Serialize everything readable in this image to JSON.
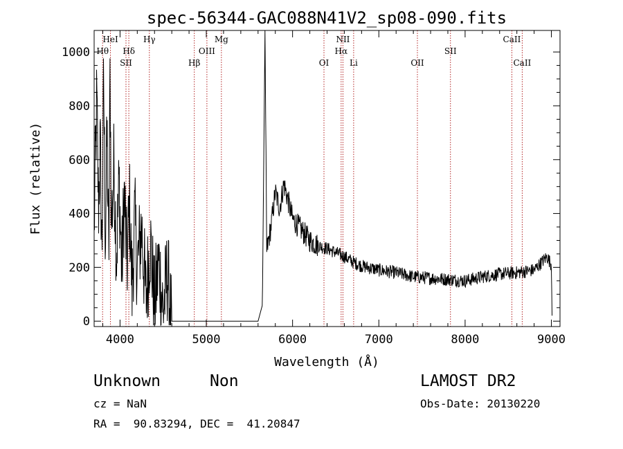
{
  "chart_data": {
    "type": "line",
    "title": "spec-56344-GAC088N41V2_sp08-090.fits",
    "xlabel": "Wavelength (Å)",
    "ylabel": "Flux (relative)",
    "xlim": [
      3700,
      9100
    ],
    "ylim": [
      -20,
      1080
    ],
    "xticks": [
      4000,
      5000,
      6000,
      7000,
      8000,
      9000
    ],
    "yticks": [
      0,
      200,
      400,
      600,
      800,
      1000
    ],
    "grid": false,
    "line_color": "#000000",
    "marker_color": "#b22222",
    "lines": [
      {
        "label": "Hθ",
        "wave": 3798,
        "row": 2
      },
      {
        "label": "HeI",
        "wave": 3889,
        "row": 1
      },
      {
        "label": "SII",
        "wave": 4069,
        "row": 3
      },
      {
        "label": "Hδ",
        "wave": 4102,
        "row": 2
      },
      {
        "label": "Hγ",
        "wave": 4340,
        "row": 1
      },
      {
        "label": "Hβ",
        "wave": 4861,
        "row": 3
      },
      {
        "label": "OIII",
        "wave": 5007,
        "row": 2
      },
      {
        "label": "Mg",
        "wave": 5175,
        "row": 1
      },
      {
        "label": "OI",
        "wave": 6364,
        "row": 3
      },
      {
        "label": "NII",
        "wave": 6584,
        "row": 1
      },
      {
        "label": "Hα",
        "wave": 6563,
        "row": 2
      },
      {
        "label": "Li",
        "wave": 6708,
        "row": 3
      },
      {
        "label": "OII",
        "wave": 7447,
        "row": 3
      },
      {
        "label": "SII",
        "wave": 7830,
        "row": 2
      },
      {
        "label": "CaII",
        "wave": 8542,
        "row": 1
      },
      {
        "label": "CaII",
        "wave": 8662,
        "row": 3
      }
    ],
    "spectrum": [
      {
        "x": 3700,
        "y": 350
      },
      {
        "x": 3730,
        "y": 820
      },
      {
        "x": 3750,
        "y": 420
      },
      {
        "x": 3770,
        "y": 650
      },
      {
        "x": 3790,
        "y": 250
      },
      {
        "x": 3810,
        "y": 900
      },
      {
        "x": 3830,
        "y": 300
      },
      {
        "x": 3850,
        "y": 700
      },
      {
        "x": 3870,
        "y": 200
      },
      {
        "x": 3885,
        "y": 950
      },
      {
        "x": 3900,
        "y": 350
      },
      {
        "x": 3930,
        "y": 580
      },
      {
        "x": 3960,
        "y": 250
      },
      {
        "x": 3990,
        "y": 520
      },
      {
        "x": 4020,
        "y": 180
      },
      {
        "x": 4050,
        "y": 480
      },
      {
        "x": 4080,
        "y": 200
      },
      {
        "x": 4110,
        "y": 440
      },
      {
        "x": 4140,
        "y": 120
      },
      {
        "x": 4170,
        "y": 380
      },
      {
        "x": 4200,
        "y": 200
      },
      {
        "x": 4250,
        "y": 350
      },
      {
        "x": 4300,
        "y": 80
      },
      {
        "x": 4350,
        "y": 300
      },
      {
        "x": 4400,
        "y": 60
      },
      {
        "x": 4450,
        "y": 220
      },
      {
        "x": 4500,
        "y": 40
      },
      {
        "x": 4550,
        "y": 180
      },
      {
        "x": 4590,
        "y": 0
      },
      {
        "x": 5600,
        "y": 0
      },
      {
        "x": 5650,
        "y": 60
      },
      {
        "x": 5680,
        "y": 1080
      },
      {
        "x": 5700,
        "y": 260
      },
      {
        "x": 5750,
        "y": 350
      },
      {
        "x": 5800,
        "y": 480
      },
      {
        "x": 5850,
        "y": 420
      },
      {
        "x": 5900,
        "y": 510
      },
      {
        "x": 6000,
        "y": 380
      },
      {
        "x": 6100,
        "y": 340
      },
      {
        "x": 6200,
        "y": 300
      },
      {
        "x": 6300,
        "y": 280
      },
      {
        "x": 6400,
        "y": 270
      },
      {
        "x": 6500,
        "y": 255
      },
      {
        "x": 6600,
        "y": 240
      },
      {
        "x": 6700,
        "y": 220
      },
      {
        "x": 6800,
        "y": 205
      },
      {
        "x": 7000,
        "y": 190
      },
      {
        "x": 7200,
        "y": 180
      },
      {
        "x": 7400,
        "y": 165
      },
      {
        "x": 7600,
        "y": 160
      },
      {
        "x": 7800,
        "y": 155
      },
      {
        "x": 8000,
        "y": 150
      },
      {
        "x": 8200,
        "y": 165
      },
      {
        "x": 8400,
        "y": 175
      },
      {
        "x": 8600,
        "y": 180
      },
      {
        "x": 8800,
        "y": 190
      },
      {
        "x": 8950,
        "y": 240
      },
      {
        "x": 9000,
        "y": 210
      },
      {
        "x": 9010,
        "y": 0
      }
    ]
  },
  "info": {
    "object_class": "Unknown",
    "object_subclass": "Non",
    "survey": "LAMOST DR2",
    "redshift": "cz = NaN",
    "obs_date": "Obs-Date: 20130220",
    "coords": "RA =  90.83294, DEC =  41.20847"
  }
}
